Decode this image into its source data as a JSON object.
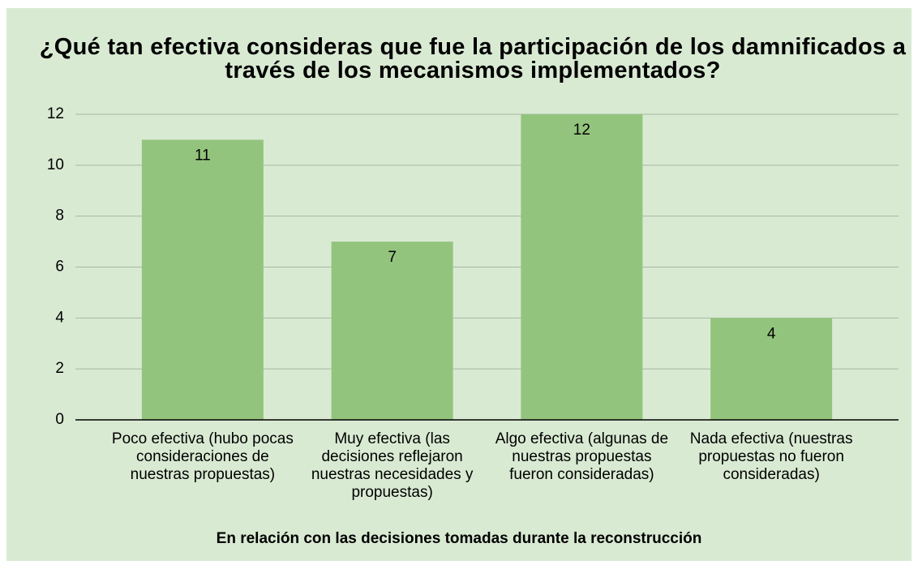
{
  "chart_data": {
    "type": "bar",
    "title": "¿Qué tan efectiva consideras que fue la participación de los damnificados a través de los mecanismos implementados?",
    "x_label": "En relación con las decisiones tomadas durante la reconstrucción",
    "categories": [
      "Poco efectiva (hubo pocas consideraciones de nuestras propuestas)",
      "Muy efectiva (las decisiones reflejaron nuestras necesidades y propuestas)",
      "Algo efectiva (algunas de nuestras propuestas fueron consideradas)",
      "Nada efectiva (nuestras propuestas no fueron consideradas)"
    ],
    "values": [
      11,
      7,
      12,
      4
    ],
    "color": "#93c47d",
    "ylim": [
      0,
      12
    ],
    "yticks": [
      0,
      2,
      4,
      6,
      8,
      10,
      12
    ],
    "grid": true
  }
}
